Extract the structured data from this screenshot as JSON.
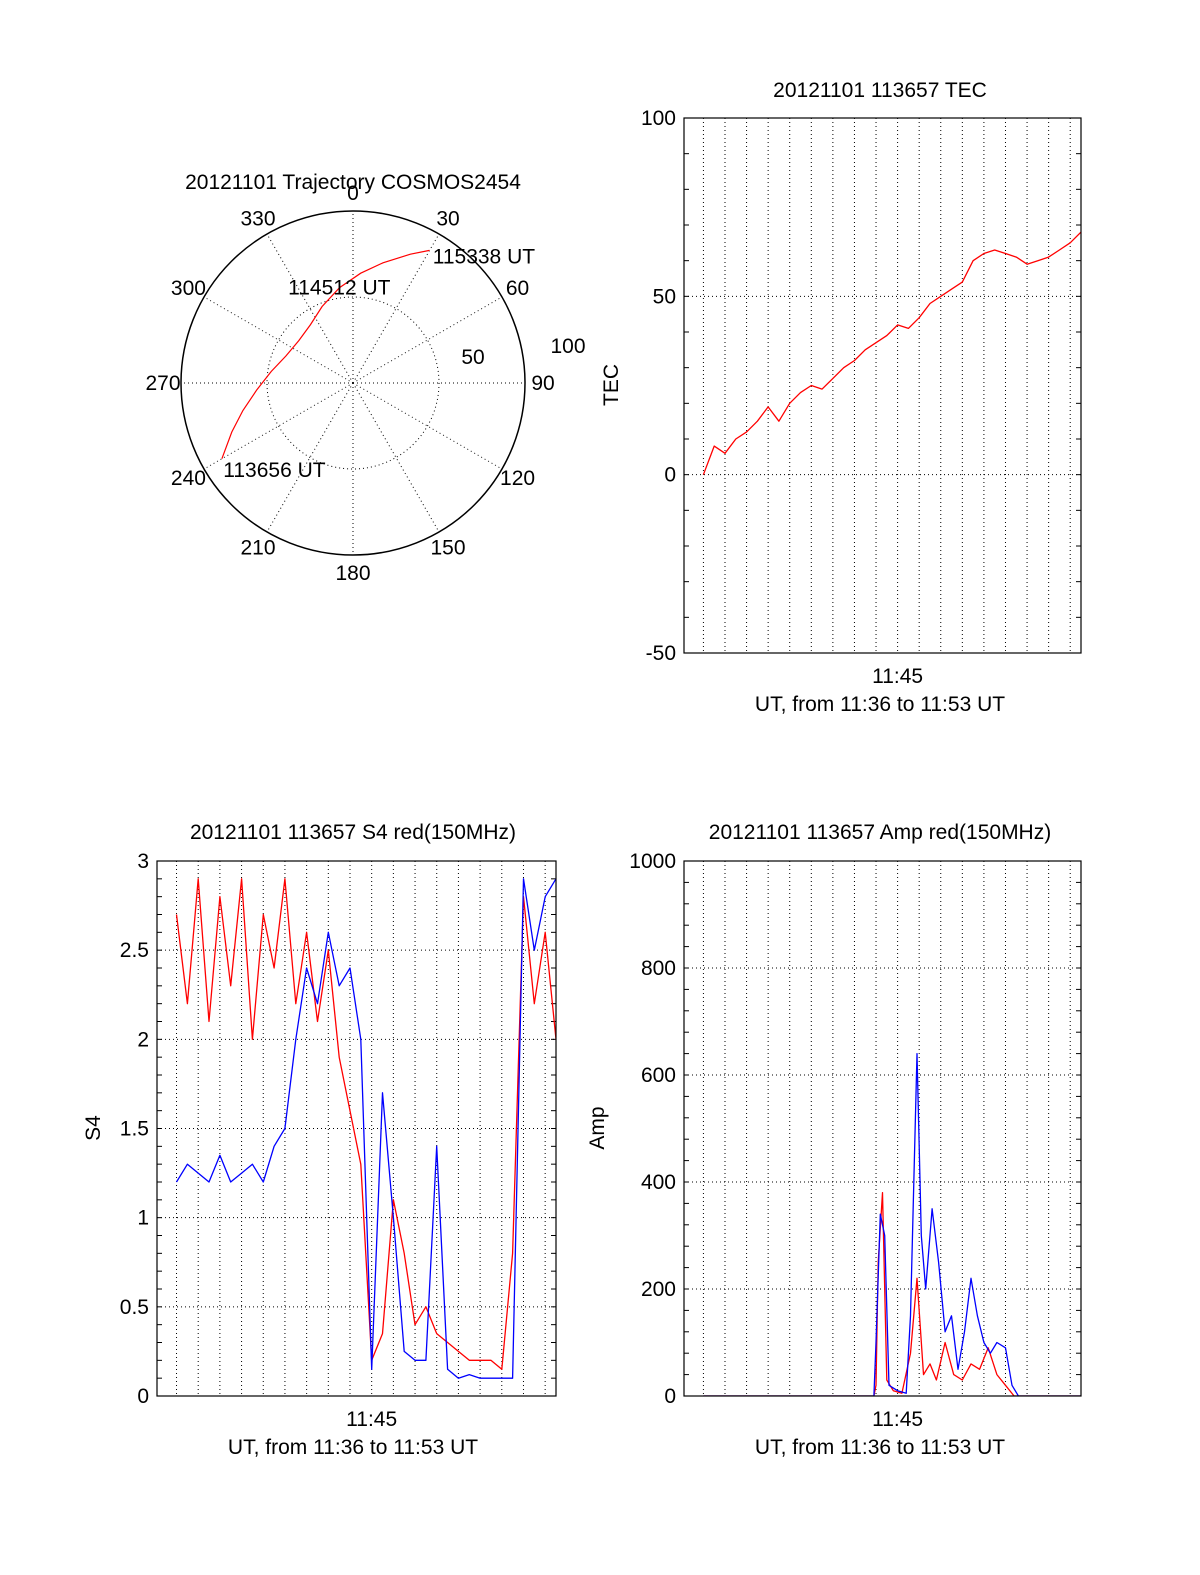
{
  "figure": {
    "panels": [
      "trajectory",
      "tec",
      "s4",
      "amp"
    ]
  },
  "chart_data": [
    {
      "id": "trajectory",
      "type": "polar",
      "title": "20121101 Trajectory COSMOS2454",
      "azimuth_labels": [
        "0",
        "30",
        "60",
        "90",
        "120",
        "150",
        "180",
        "210",
        "240",
        "270",
        "300",
        "330"
      ],
      "radial_ring_labels": [
        "50",
        "100"
      ],
      "radial_max": 100,
      "series": [
        {
          "color": "#ff0000",
          "points_az_zen": [
            [
              240,
              88
            ],
            [
              248,
              76
            ],
            [
              256,
              66
            ],
            [
              266,
              56
            ],
            [
              278,
              48
            ],
            [
              292,
              42
            ],
            [
              308,
              40
            ],
            [
              324,
              42
            ],
            [
              338,
              48
            ],
            [
              352,
              56
            ],
            [
              4,
              64
            ],
            [
              14,
              72
            ],
            [
              24,
              82
            ],
            [
              30,
              89
            ]
          ]
        }
      ],
      "annotations": [
        {
          "text": "113656 UT",
          "az": 239,
          "zen": 88
        },
        {
          "text": "114512 UT",
          "az": 348,
          "zen": 36
        },
        {
          "text": "115338 UT",
          "az": 31,
          "zen": 90
        }
      ]
    },
    {
      "id": "tec",
      "type": "line",
      "title": "20121101 113657 TEC",
      "ylabel": "TEC",
      "xlabel": "UT, from 11:36 to 11:53 UT",
      "x_tick_label": "11:45",
      "x_tick_minute": 45,
      "xlim_minutes": [
        35.1,
        53.5
      ],
      "ylim": [
        -50,
        100
      ],
      "y_ticks": [
        -50,
        0,
        50,
        100
      ],
      "grid": true,
      "series": [
        {
          "color": "#ff0000",
          "x": [
            36,
            36.5,
            37,
            37.5,
            38,
            38.5,
            39,
            39.5,
            40,
            40.5,
            41,
            41.5,
            42,
            42.5,
            43,
            43.5,
            44,
            44.5,
            45,
            45.5,
            46,
            46.5,
            47,
            47.5,
            48,
            48.5,
            49,
            49.5,
            50,
            50.5,
            51,
            51.5,
            52,
            52.5,
            53,
            53.5
          ],
          "y": [
            0,
            8,
            6,
            10,
            12,
            15,
            19,
            15,
            20,
            23,
            25,
            24,
            27,
            30,
            32,
            35,
            37,
            39,
            42,
            41,
            44,
            48,
            50,
            52,
            54,
            60,
            62,
            63,
            62,
            61,
            59,
            60,
            61,
            63,
            65,
            68
          ]
        }
      ]
    },
    {
      "id": "s4",
      "type": "line",
      "title": "20121101 113657 S4 red(150MHz)",
      "ylabel": "S4",
      "xlabel": "UT, from 11:36 to 11:53 UT",
      "x_tick_label": "11:45",
      "x_tick_minute": 45,
      "xlim_minutes": [
        35.1,
        53.5
      ],
      "ylim": [
        0,
        3
      ],
      "y_ticks": [
        0,
        0.5,
        1,
        1.5,
        2,
        2.5,
        3
      ],
      "grid": true,
      "series": [
        {
          "color": "#ff0000",
          "x": [
            36,
            36.5,
            37,
            37.5,
            38,
            38.5,
            39,
            39.5,
            40,
            40.5,
            41,
            41.5,
            42,
            42.5,
            43,
            43.5,
            44,
            44.5,
            45,
            45.5,
            46,
            46.5,
            47,
            47.5,
            48,
            48.5,
            49,
            49.5,
            50,
            50.5,
            51,
            51.5,
            52,
            52.5,
            53,
            53.5
          ],
          "y": [
            2.7,
            2.2,
            2.9,
            2.1,
            2.8,
            2.3,
            2.9,
            2.0,
            2.7,
            2.4,
            2.9,
            2.2,
            2.6,
            2.1,
            2.5,
            1.9,
            1.6,
            1.3,
            0.2,
            0.35,
            1.1,
            0.8,
            0.4,
            0.5,
            0.35,
            0.3,
            0.25,
            0.2,
            0.2,
            0.2,
            0.15,
            0.8,
            2.8,
            2.2,
            2.6,
            2.0
          ]
        },
        {
          "color": "#0000ff",
          "x": [
            36,
            36.5,
            37,
            37.5,
            38,
            38.5,
            39,
            39.5,
            40,
            40.5,
            41,
            41.5,
            42,
            42.5,
            43,
            43.5,
            44,
            44.5,
            45,
            45.5,
            46,
            46.5,
            47,
            47.5,
            48,
            48.5,
            49,
            49.5,
            50,
            50.5,
            51,
            51.5,
            52,
            52.5,
            53,
            53.5
          ],
          "y": [
            1.2,
            1.3,
            1.25,
            1.2,
            1.35,
            1.2,
            1.25,
            1.3,
            1.2,
            1.4,
            1.5,
            2.0,
            2.4,
            2.2,
            2.6,
            2.3,
            2.4,
            2.0,
            0.15,
            1.7,
            1.0,
            0.25,
            0.2,
            0.2,
            1.4,
            0.15,
            0.1,
            0.12,
            0.1,
            0.1,
            0.1,
            0.1,
            2.9,
            2.5,
            2.8,
            2.9
          ]
        }
      ]
    },
    {
      "id": "amp",
      "type": "line",
      "title": "20121101 113657 Amp red(150MHz)",
      "ylabel": "Amp",
      "xlabel": "UT, from 11:36 to 11:53 UT",
      "x_tick_label": "11:45",
      "x_tick_minute": 45,
      "xlim_minutes": [
        35.1,
        53.5
      ],
      "ylim": [
        0,
        1000
      ],
      "y_ticks": [
        0,
        200,
        400,
        600,
        800,
        1000
      ],
      "grid": true,
      "series": [
        {
          "color": "#ff0000",
          "x": [
            36,
            38,
            40,
            42,
            43.9,
            44.0,
            44.1,
            44.3,
            44.5,
            44.8,
            45.2,
            45.6,
            45.9,
            46.2,
            46.5,
            46.8,
            47.2,
            47.6,
            48.0,
            48.4,
            48.8,
            49.2,
            49.6,
            50.0,
            50.4,
            51,
            52,
            53.5
          ],
          "y": [
            0,
            0,
            0,
            0,
            0,
            20,
            250,
            380,
            30,
            10,
            5,
            80,
            220,
            40,
            60,
            30,
            100,
            40,
            30,
            60,
            50,
            90,
            40,
            20,
            0,
            0,
            0,
            0
          ]
        },
        {
          "color": "#0000ff",
          "x": [
            36,
            38,
            40,
            42,
            43.9,
            44.0,
            44.2,
            44.4,
            44.6,
            45.0,
            45.4,
            45.6,
            45.9,
            46.1,
            46.3,
            46.6,
            46.9,
            47.2,
            47.5,
            47.8,
            48.1,
            48.4,
            48.7,
            49.0,
            49.3,
            49.6,
            50.0,
            50.3,
            50.6,
            51,
            52,
            53.5
          ],
          "y": [
            0,
            0,
            0,
            0,
            0,
            100,
            340,
            300,
            20,
            10,
            5,
            150,
            640,
            300,
            200,
            350,
            250,
            120,
            150,
            50,
            120,
            220,
            150,
            100,
            80,
            100,
            90,
            20,
            0,
            0,
            0,
            0
          ]
        }
      ]
    }
  ]
}
